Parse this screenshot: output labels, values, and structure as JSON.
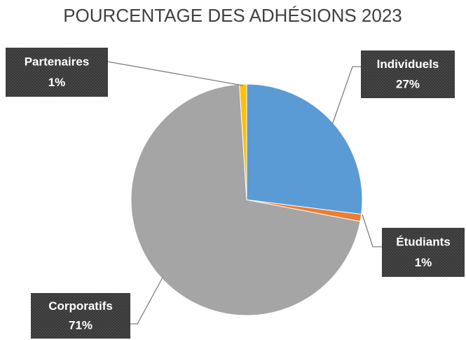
{
  "chart_data": {
    "type": "pie",
    "title": "POURCENTAGE DES ADHÉSIONS 2023",
    "categories": [
      "Individuels",
      "Étudiants",
      "Corporatifs",
      "Partenaires"
    ],
    "values": [
      27,
      1,
      71,
      1
    ],
    "value_labels": [
      "27%",
      "1%",
      "71%",
      "1%"
    ],
    "colors": [
      "#5b9bd5",
      "#ed7d31",
      "#a5a5a5",
      "#ffc000"
    ]
  }
}
